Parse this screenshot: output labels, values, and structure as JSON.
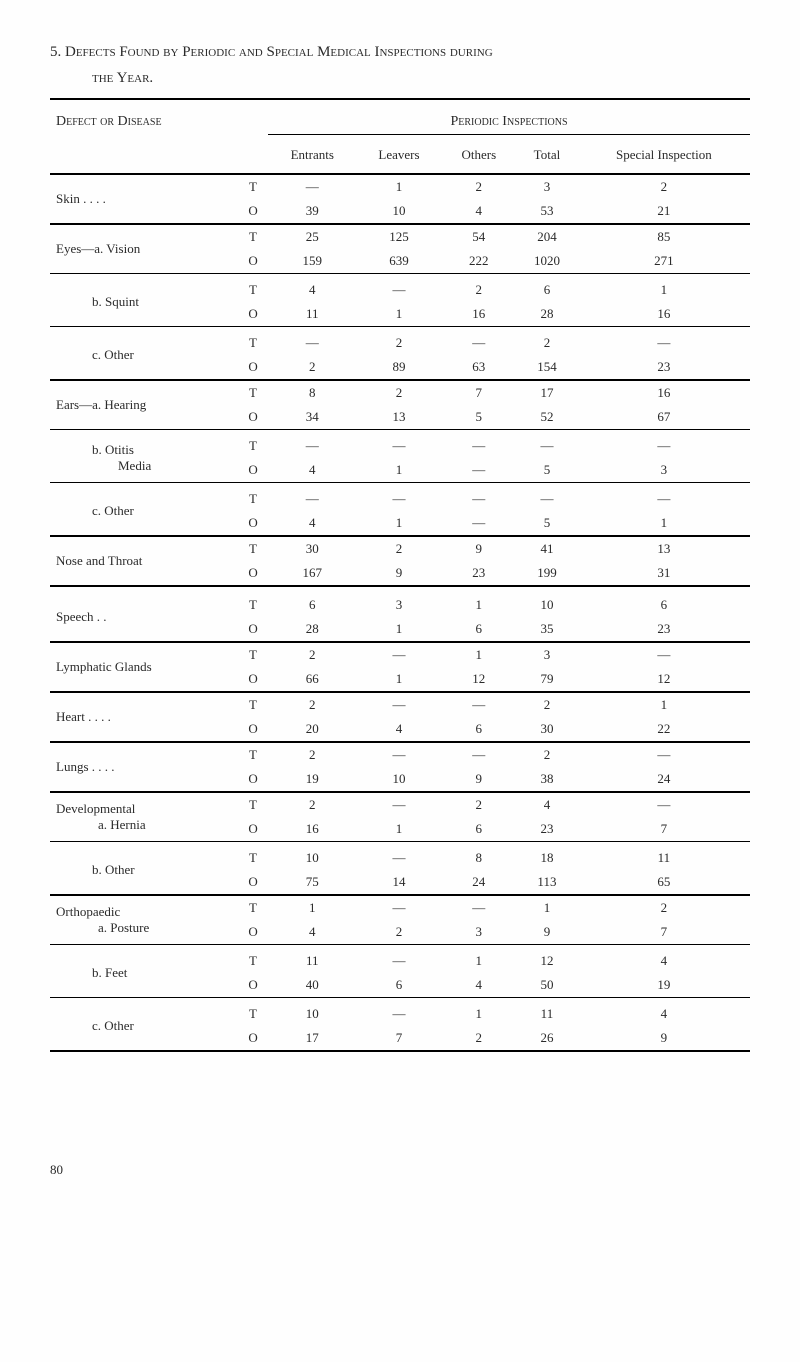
{
  "heading": {
    "number": "5.",
    "main": "Defects Found by Periodic and Special Medical Inspections during",
    "sub": "the Year."
  },
  "section_headers": {
    "defect": "Defect or Disease",
    "periodic": "Periodic Inspections"
  },
  "columns": {
    "entrants": "Entrants",
    "leavers": "Leavers",
    "others": "Others",
    "total": "Total",
    "special": "Special Inspection"
  },
  "rows": [
    {
      "label": "Skin    . .      . .",
      "sub": false,
      "border": "thick",
      "T": [
        "—",
        "1",
        "2",
        "3",
        "2"
      ],
      "O": [
        "39",
        "10",
        "4",
        "53",
        "21"
      ]
    },
    {
      "label": "Eyes—a.  Vision",
      "sub": false,
      "border": "thick",
      "T": [
        "25",
        "125",
        "54",
        "204",
        "85"
      ],
      "O": [
        "159",
        "639",
        "222",
        "1020",
        "271"
      ]
    },
    {
      "label": "b.  Squint",
      "sub": true,
      "border": "thin",
      "T": [
        "4",
        "—",
        "2",
        "6",
        "1"
      ],
      "O": [
        "11",
        "1",
        "16",
        "28",
        "16"
      ]
    },
    {
      "label": "c.  Other",
      "sub": true,
      "border": "thin",
      "T": [
        "—",
        "2",
        "—",
        "2",
        "—"
      ],
      "O": [
        "2",
        "89",
        "63",
        "154",
        "23"
      ]
    },
    {
      "label": "Ears—a.  Hearing",
      "sub": false,
      "border": "thick",
      "T": [
        "8",
        "2",
        "7",
        "17",
        "16"
      ],
      "O": [
        "34",
        "13",
        "5",
        "52",
        "67"
      ]
    },
    {
      "label": "b.  Otitis",
      "label2": "Media",
      "sub": true,
      "border": "thin",
      "T": [
        "—",
        "—",
        "—",
        "—",
        "—"
      ],
      "O": [
        "4",
        "1",
        "—",
        "5",
        "3"
      ]
    },
    {
      "label": "c.  Other",
      "sub": true,
      "border": "thin",
      "T": [
        "—",
        "—",
        "—",
        "—",
        "—"
      ],
      "O": [
        "4",
        "1",
        "—",
        "5",
        "1"
      ]
    },
    {
      "label": "Nose and Throat",
      "sub": false,
      "border": "thick",
      "T": [
        "30",
        "2",
        "9",
        "41",
        "13"
      ],
      "O": [
        "167",
        "9",
        "23",
        "199",
        "31"
      ]
    },
    {
      "label": "Speech           . .",
      "sub": false,
      "border": "thick",
      "gap": true,
      "T": [
        "6",
        "3",
        "1",
        "10",
        "6"
      ],
      "O": [
        "28",
        "1",
        "6",
        "35",
        "23"
      ]
    },
    {
      "label": "Lymphatic Glands",
      "sub": false,
      "border": "thick",
      "T": [
        "2",
        "—",
        "1",
        "3",
        "—"
      ],
      "O": [
        "66",
        "1",
        "12",
        "79",
        "12"
      ]
    },
    {
      "label": "Heart    . .      . .",
      "sub": false,
      "border": "thick",
      "T": [
        "2",
        "—",
        "—",
        "2",
        "1"
      ],
      "O": [
        "20",
        "4",
        "6",
        "30",
        "22"
      ]
    },
    {
      "label": "Lungs   . .      . .",
      "sub": false,
      "border": "thick",
      "T": [
        "2",
        "—",
        "—",
        "2",
        "—"
      ],
      "O": [
        "19",
        "10",
        "9",
        "38",
        "24"
      ]
    },
    {
      "label": "Developmental",
      "label2a": "a.  Hernia",
      "sub": false,
      "border": "thick",
      "T": [
        "2",
        "—",
        "2",
        "4",
        "—"
      ],
      "O": [
        "16",
        "1",
        "6",
        "23",
        "7"
      ]
    },
    {
      "label": "b.  Other",
      "sub": true,
      "border": "thin",
      "T": [
        "10",
        "—",
        "8",
        "18",
        "11"
      ],
      "O": [
        "75",
        "14",
        "24",
        "113",
        "65"
      ]
    },
    {
      "label": "Orthopaedic",
      "label2a": "a.  Posture",
      "sub": false,
      "border": "thick",
      "T": [
        "1",
        "—",
        "—",
        "1",
        "2"
      ],
      "O": [
        "4",
        "2",
        "3",
        "9",
        "7"
      ]
    },
    {
      "label": "b.  Feet",
      "sub": true,
      "border": "thin",
      "T": [
        "11",
        "—",
        "1",
        "12",
        "4"
      ],
      "O": [
        "40",
        "6",
        "4",
        "50",
        "19"
      ]
    },
    {
      "label": "c.  Other",
      "sub": true,
      "border": "thin",
      "T": [
        "10",
        "—",
        "1",
        "11",
        "4"
      ],
      "O": [
        "17",
        "7",
        "2",
        "26",
        "9"
      ]
    }
  ],
  "page_number": "80"
}
